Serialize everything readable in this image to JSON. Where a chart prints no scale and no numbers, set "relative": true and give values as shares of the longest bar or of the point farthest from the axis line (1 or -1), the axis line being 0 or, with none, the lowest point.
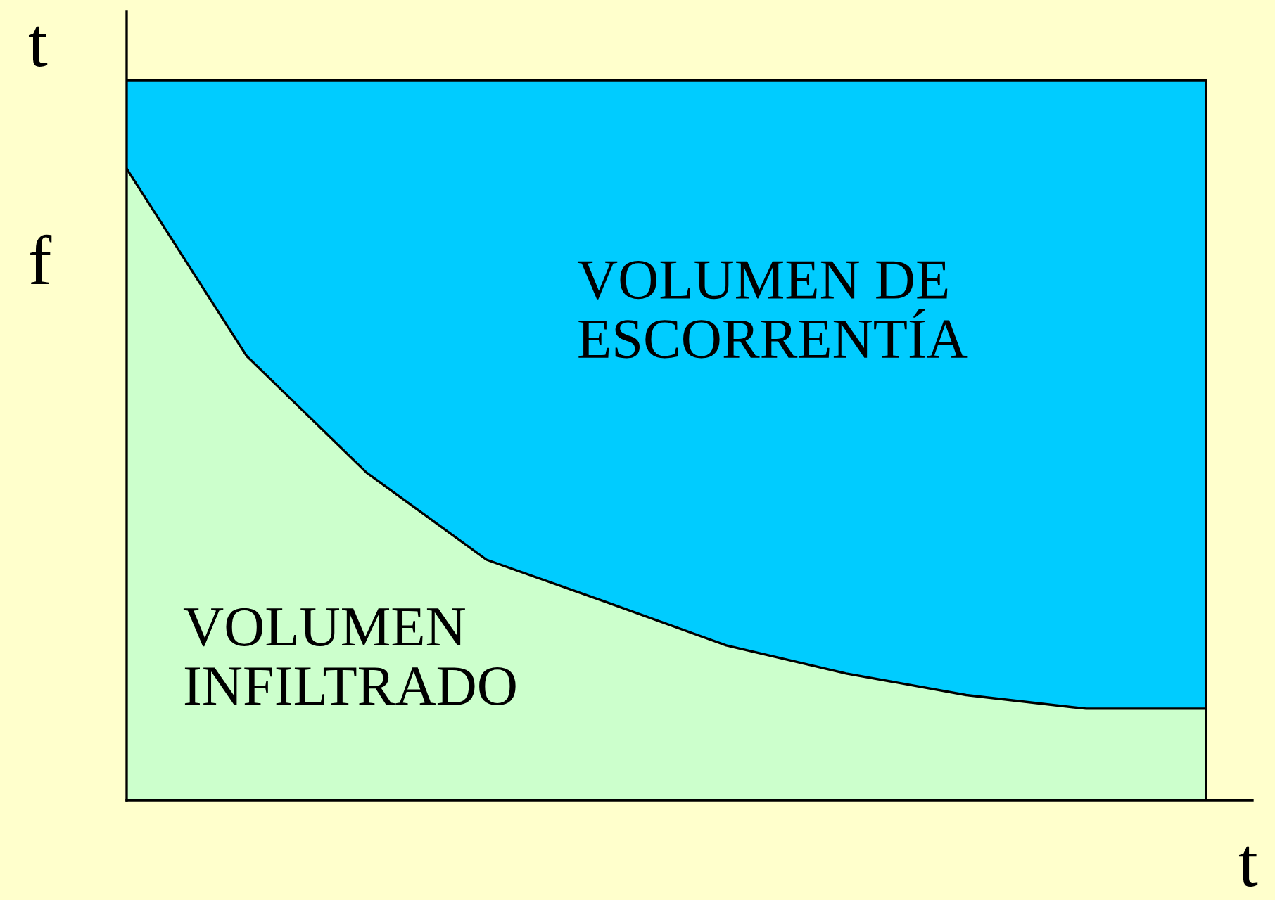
{
  "chart_data": {
    "type": "area",
    "relative": true,
    "stacked": true,
    "xlabel": "t",
    "ylabel": "t",
    "categories": [
      null,
      null,
      null,
      null,
      null,
      null,
      null,
      null,
      null,
      null
    ],
    "series": [
      {
        "name": "VOLUMEN INFILTRADO",
        "color": "#ccffcc",
        "values": [
          0.877,
          0.617,
          0.455,
          0.334,
          0.275,
          0.215,
          0.176,
          0.146,
          0.127,
          0.127
        ]
      },
      {
        "name": "VOLUMEN DE ESCORRENTÍA",
        "color": "#00ccff",
        "values": [
          0.123,
          0.383,
          0.545,
          0.666,
          0.725,
          0.785,
          0.824,
          0.854,
          0.873,
          0.873
        ]
      }
    ],
    "annotations": [
      "f"
    ],
    "legend": false
  }
}
